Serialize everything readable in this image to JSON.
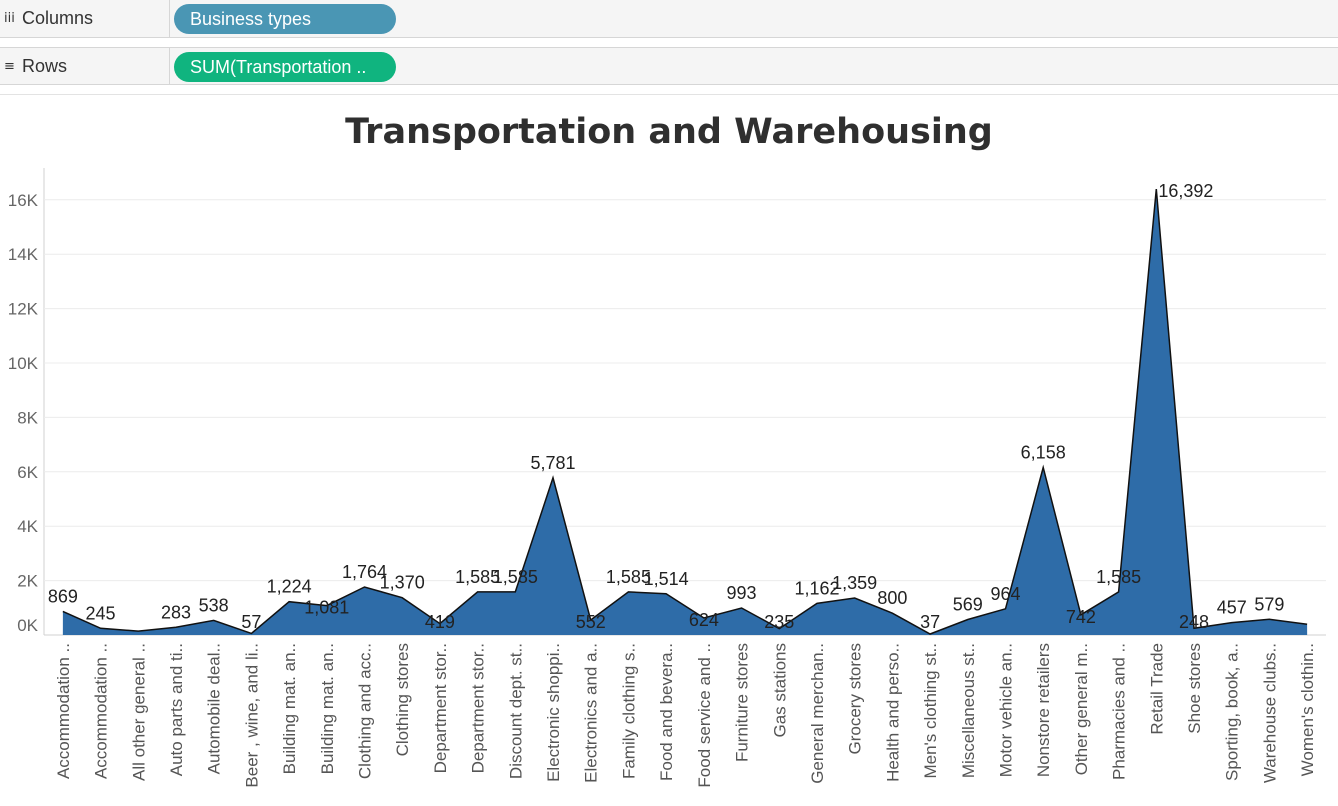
{
  "shelves": {
    "columns": {
      "label": "Columns",
      "icon": "iii",
      "pill": "Business types",
      "pill_color": "#4a96b4"
    },
    "rows": {
      "label": "Rows",
      "icon": "≡",
      "pill": "SUM(Transportation ..",
      "pill_color": "#10b47f"
    }
  },
  "chart_data": {
    "type": "area",
    "title": "Transportation and Warehousing",
    "color": "#2e6ca8",
    "ylim": [
      0,
      17000
    ],
    "yticks": [
      0,
      2000,
      4000,
      6000,
      8000,
      10000,
      12000,
      14000,
      16000
    ],
    "ytick_labels": [
      "0K",
      "2K",
      "4K",
      "6K",
      "8K",
      "10K",
      "12K",
      "14K",
      "16K"
    ],
    "grid": true,
    "categories": [
      "Accommodation ..",
      "Accommodation ..",
      "All other general ..",
      "Auto parts and ti..",
      "Automobile deal..",
      "Beer , wine, and li..",
      "Building mat. an..",
      "Building mat. an..",
      "Clothing and acc..",
      "Clothing stores",
      "Department stor..",
      "Department stor..",
      "Discount dept. st..",
      "Electronic shoppi..",
      "Electronics and a..",
      "Family clothing s..",
      "Food and bevera..",
      "Food service and ..",
      "Furniture stores",
      "Gas stations",
      "General merchan..",
      "Grocery stores",
      "Health and perso..",
      "Men's clothing st..",
      "Miscellaneous st..",
      "Motor vehicle an..",
      "Nonstore retailers",
      "Other general m..",
      "Pharmacies and ..",
      "Retail Trade",
      "Shoe stores",
      "Sporting, book, a..",
      "Warehouse clubs..",
      "Women's clothin.."
    ],
    "values": [
      869,
      245,
      145,
      283,
      538,
      57,
      1224,
      1081,
      1764,
      1370,
      419,
      1585,
      1585,
      5781,
      552,
      1585,
      1514,
      624,
      993,
      235,
      1162,
      1359,
      800,
      37,
      569,
      964,
      6158,
      742,
      1585,
      16392,
      248,
      457,
      579,
      395
    ],
    "labels": [
      "869",
      "245",
      "",
      "283",
      "538",
      "57",
      "1,224",
      "1,081",
      "1,764",
      "1,370",
      "419",
      "1,585",
      "1,585",
      "5,781",
      "552",
      "1,585",
      "1,514",
      "624",
      "993",
      "235",
      "1,162",
      "1,359",
      "800",
      "37",
      "569",
      "964",
      "6,158",
      "742",
      "1,585",
      "16,392",
      "248",
      "457",
      "579",
      ""
    ]
  }
}
